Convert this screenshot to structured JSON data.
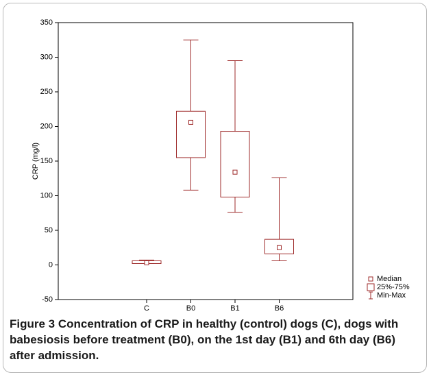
{
  "chart_data": {
    "type": "box",
    "y_label": "CRP (mg/l)",
    "caption_label": "Figure 3",
    "caption": "Concentration of CRP in healthy (control) dogs (C), dogs with babesiosis before treatment (B0), on the 1st day (B1) and 6th day (B6) after admission.",
    "categories": [
      "C",
      "B0",
      "B1",
      "B6"
    ],
    "min": [
      2,
      108,
      76,
      6
    ],
    "q1": [
      2,
      155,
      98,
      16
    ],
    "median": [
      3,
      206,
      134,
      25
    ],
    "q3": [
      6,
      222,
      193,
      37
    ],
    "max": [
      7,
      325,
      295,
      126
    ],
    "color": "#9e2a2a",
    "ylim": [
      -50,
      350
    ],
    "yticks": [
      -50,
      0,
      50,
      100,
      150,
      200,
      250,
      300,
      350
    ],
    "legend": [
      "Median",
      "25%-75%",
      "Min-Max"
    ]
  }
}
